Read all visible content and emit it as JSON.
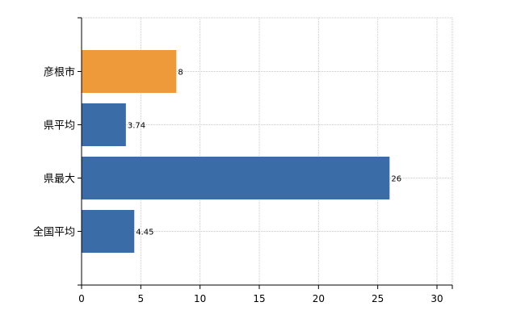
{
  "chart_data": {
    "type": "bar",
    "orientation": "horizontal",
    "categories": [
      "彦根市",
      "県平均",
      "県最大",
      "全国平均"
    ],
    "values": [
      8,
      3.74,
      26,
      4.45
    ],
    "value_labels": [
      "8",
      "3.74",
      "26",
      "4.45"
    ],
    "colors": [
      "#ee9a3a",
      "#3a6ca8",
      "#3a6ca8",
      "#3a6ca8"
    ],
    "xlim": [
      0,
      30
    ],
    "xticks": [
      0,
      5,
      10,
      15,
      20,
      25,
      30
    ],
    "grid": "dotted vertical and horizontal",
    "title": "",
    "xlabel": "",
    "ylabel": ""
  }
}
